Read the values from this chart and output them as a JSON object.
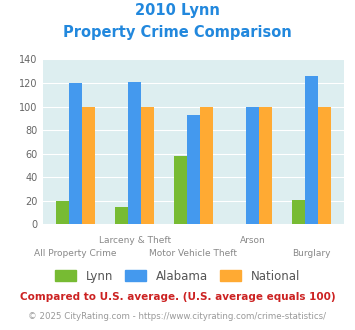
{
  "title_line1": "2010 Lynn",
  "title_line2": "Property Crime Comparison",
  "lynn": [
    20,
    15,
    58,
    0,
    21
  ],
  "alabama": [
    120,
    121,
    93,
    100,
    126
  ],
  "national": [
    100,
    100,
    100,
    100,
    100
  ],
  "lynn_color": "#77bb33",
  "alabama_color": "#4499ee",
  "national_color": "#ffaa33",
  "bg_color": "#ddeef0",
  "title_color": "#2288dd",
  "ylim": [
    0,
    140
  ],
  "yticks": [
    0,
    20,
    40,
    60,
    80,
    100,
    120,
    140
  ],
  "top_labels": [
    "",
    "Larceny & Theft",
    "",
    "Arson",
    ""
  ],
  "bottom_labels": [
    "All Property Crime",
    "",
    "Motor Vehicle Theft",
    "",
    "Burglary"
  ],
  "legend_labels": [
    "Lynn",
    "Alabama",
    "National"
  ],
  "footnote": "Compared to U.S. average. (U.S. average equals 100)",
  "footnote2": "© 2025 CityRating.com - https://www.cityrating.com/crime-statistics/",
  "footnote_color": "#cc2222",
  "footnote2_color": "#999999",
  "link_color": "#4499ee"
}
